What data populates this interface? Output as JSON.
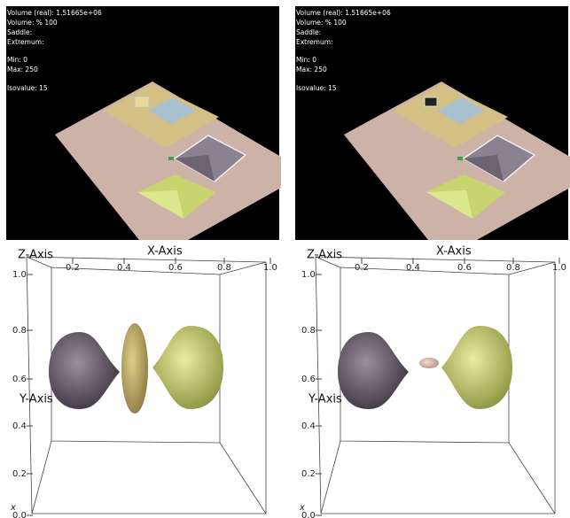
{
  "top_panels": [
    {
      "lines": [
        "Volume  (real):  1.51665e+06",
        "Volume:  %  100",
        "Saddle:",
        "Extremum:",
        "Min:  0",
        "Max:  250",
        "Isovalue:  15"
      ]
    },
    {
      "lines": [
        "Volume  (real):  1.51665e+06",
        "Volume:  %  100",
        "Saddle:",
        "Extremum:",
        "Min:  0",
        "Max:  250",
        "Isovalue:  15"
      ]
    }
  ],
  "bottom_panels": [
    {
      "z_axis_label": "Z-Axis",
      "x_axis_label": "X-Axis",
      "y_axis_label": "Y-Axis",
      "x_ticks": [
        "0.2",
        "0.4",
        "0.6",
        "0.8",
        "1.0"
      ],
      "y_ticks": [
        "1.0",
        "0.8",
        "0.6",
        "0.4",
        "0.2",
        "0.0"
      ],
      "corner_label": "x"
    },
    {
      "z_axis_label": "Z-Axis",
      "x_axis_label": "X-Axis",
      "y_axis_label": "Y-Axis",
      "x_ticks": [
        "0.2",
        "0.4",
        "0.6",
        "0.8",
        "1.0"
      ],
      "y_ticks": [
        "1.0",
        "0.8",
        "0.6",
        "0.4",
        "0.2",
        "0.0"
      ],
      "corner_label": "x"
    }
  ]
}
